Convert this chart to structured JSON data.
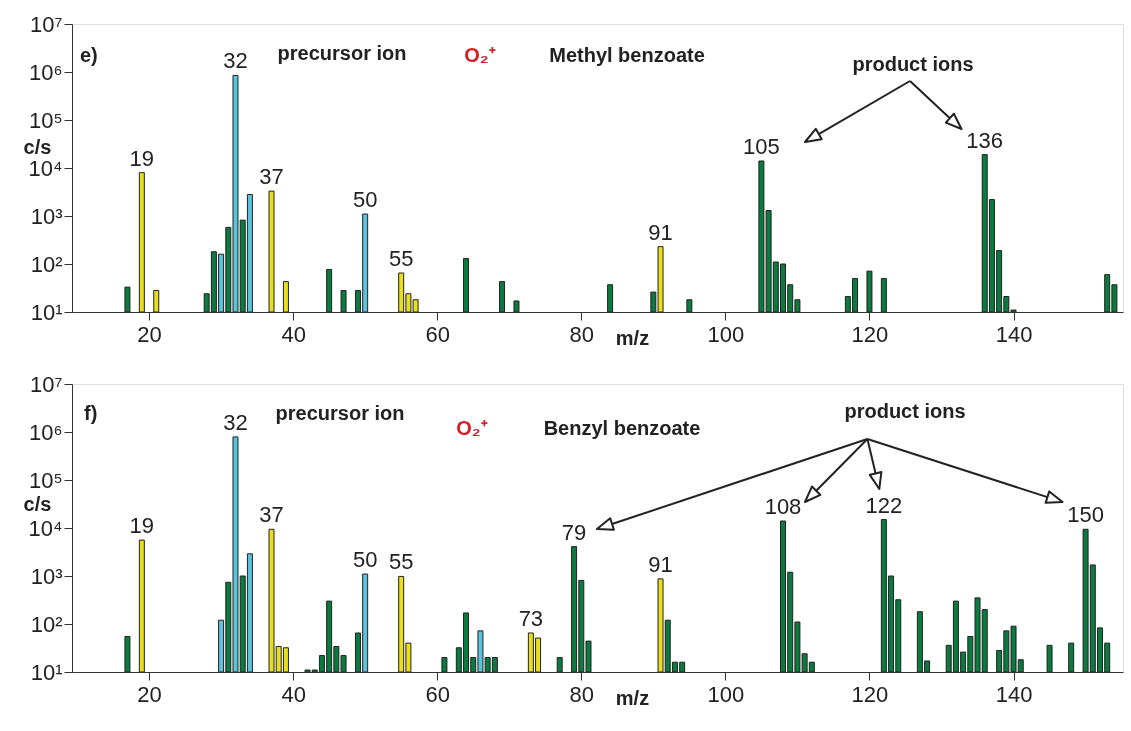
{
  "chart_data": [
    {
      "type": "bar",
      "xlabel": "m/z",
      "ylabel": "c/s",
      "log": true,
      "xlim": [
        10,
        154.5
      ],
      "xticks": [
        20,
        40,
        60,
        80,
        100,
        120,
        140
      ],
      "ylim": [
        10,
        10000000
      ],
      "yticks": [
        {
          "value": 10,
          "label": "10¹"
        },
        {
          "value": 100,
          "label": "10²"
        },
        {
          "value": 1000,
          "label": "10³"
        },
        {
          "value": 10000,
          "label": "10⁴"
        },
        {
          "value": 100000,
          "label": "10⁵"
        },
        {
          "value": 1000000,
          "label": "10⁶"
        },
        {
          "value": 10000000,
          "label": "10⁷"
        }
      ],
      "series": [
        {
          "color": "#e8de1c",
          "x": [
            19,
            21,
            37,
            39,
            55,
            56,
            57,
            91
          ],
          "values": [
            8000,
            28,
            3300,
            43,
            65,
            24,
            18,
            230
          ]
        },
        {
          "color": "#0b7a3e",
          "x": [
            17,
            28,
            29,
            31,
            33,
            45,
            47,
            49,
            64,
            69,
            71,
            84,
            90,
            95,
            105,
            106,
            107,
            108,
            109,
            110,
            117,
            118,
            120,
            122,
            136,
            137,
            138,
            139,
            140,
            153,
            154
          ],
          "values": [
            33,
            24,
            180,
            580,
            820,
            77,
            28,
            28,
            130,
            43,
            17,
            37,
            26,
            18,
            14000,
            1300,
            110,
            100,
            37,
            18,
            21,
            50,
            71,
            50,
            19000,
            2200,
            190,
            21,
            11,
            60,
            37
          ]
        },
        {
          "color": "#5cc3dc",
          "x": [
            30,
            32,
            34,
            50
          ],
          "values": [
            160,
            850000,
            2800,
            1100
          ]
        }
      ],
      "annotations": [
        "e)",
        "precursor ion",
        "O₂⁺",
        "Methyl benzoate",
        "product ions",
        {
          "text": "19",
          "x": 19,
          "y": 8000
        },
        {
          "text": "32",
          "x": 32,
          "y": 850000
        },
        {
          "text": "37",
          "x": 37,
          "y": 3300
        },
        {
          "text": "50",
          "x": 50,
          "y": 1100
        },
        {
          "text": "55",
          "x": 55,
          "y": 65
        },
        {
          "text": "91",
          "x": 91,
          "y": 230
        },
        {
          "text": "105",
          "x": 105,
          "y": 14000
        },
        {
          "text": "136",
          "x": 136,
          "y": 19000
        }
      ]
    },
    {
      "type": "bar",
      "xlabel": "m/z",
      "ylabel": "c/s",
      "log": true,
      "xlim": [
        10,
        154.5
      ],
      "xticks": [
        20,
        40,
        60,
        80,
        100,
        120,
        140
      ],
      "ylim": [
        10,
        10000000
      ],
      "yticks": [
        {
          "value": 10,
          "label": "10¹"
        },
        {
          "value": 100,
          "label": "10²"
        },
        {
          "value": 1000,
          "label": "10³"
        },
        {
          "value": 10000,
          "label": "10⁴"
        },
        {
          "value": 100000,
          "label": "10⁵"
        },
        {
          "value": 1000000,
          "label": "10⁶"
        },
        {
          "value": 10000000,
          "label": "10⁷"
        }
      ],
      "series": [
        {
          "color": "#e8de1c",
          "x": [
            19,
            37,
            38,
            39,
            55,
            56,
            73,
            74,
            91
          ],
          "values": [
            5600,
            9400,
            34,
            32,
            980,
            40,
            65,
            51,
            870
          ]
        },
        {
          "color": "#0b7a3e",
          "x": [
            17,
            31,
            33,
            42,
            43,
            44,
            45,
            46,
            47,
            49,
            61,
            63,
            64,
            65,
            67,
            68,
            77,
            79,
            80,
            81,
            92,
            93,
            94,
            108,
            109,
            110,
            111,
            112,
            122,
            123,
            124,
            127,
            128,
            131,
            132,
            133,
            134,
            135,
            136,
            138,
            139,
            140,
            141,
            145,
            148,
            150,
            151,
            152,
            153
          ],
          "values": [
            55,
            740,
            1000,
            11,
            11,
            22,
            300,
            34,
            22,
            65,
            20,
            32,
            170,
            20,
            20,
            20,
            20,
            4100,
            810,
            44,
            120,
            16,
            16,
            14000,
            1200,
            110,
            24,
            16,
            15000,
            1000,
            320,
            180,
            17,
            36,
            300,
            26,
            55,
            350,
            200,
            28,
            72,
            90,
            18,
            36,
            40,
            9400,
            1700,
            83,
            40
          ]
        },
        {
          "color": "#5cc3dc",
          "x": [
            30,
            32,
            34,
            50,
            66
          ],
          "values": [
            120,
            790000,
            2900,
            1100,
            72
          ]
        }
      ],
      "annotations": [
        "f)",
        "precursor ion",
        "O₂⁺",
        "Benzyl benzoate",
        "product ions",
        {
          "text": "19",
          "x": 19,
          "y": 5600
        },
        {
          "text": "32",
          "x": 32,
          "y": 790000
        },
        {
          "text": "37",
          "x": 37,
          "y": 9400
        },
        {
          "text": "50",
          "x": 50,
          "y": 1100
        },
        {
          "text": "55",
          "x": 55,
          "y": 980
        },
        {
          "text": "73",
          "x": 73,
          "y": 65
        },
        {
          "text": "79",
          "x": 79,
          "y": 4100
        },
        {
          "text": "91",
          "x": 91,
          "y": 870
        },
        {
          "text": "108",
          "x": 108,
          "y": 14000
        },
        {
          "text": "122",
          "x": 122,
          "y": 15000
        },
        {
          "text": "150",
          "x": 150,
          "y": 9400
        }
      ]
    }
  ]
}
